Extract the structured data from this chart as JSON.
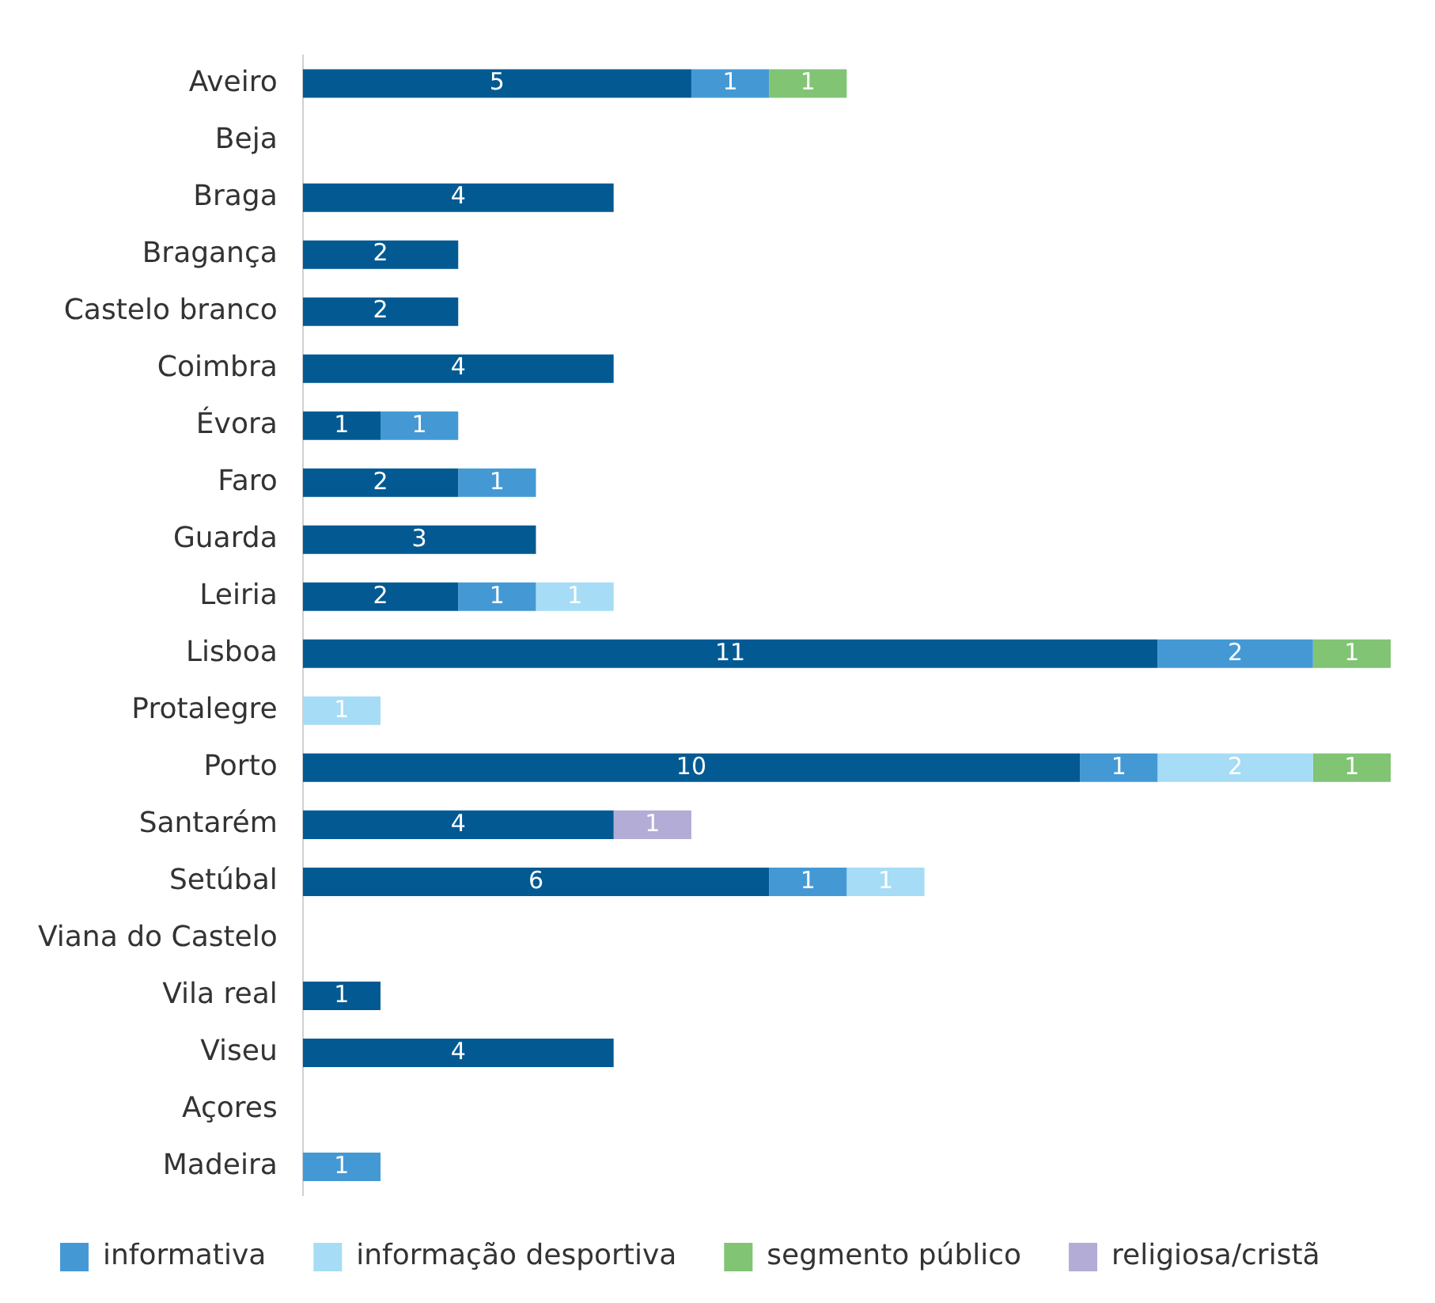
{
  "chart_data": {
    "type": "bar",
    "orientation": "horizontal",
    "stacked": true,
    "data_labels": true,
    "legend": "bottom",
    "categories": [
      "Aveiro",
      "Beja",
      "Braga",
      "Bragança",
      "Castelo branco",
      "Coimbra",
      "Évora",
      "Faro",
      "Guarda",
      "Leiria",
      "Lisboa",
      "Protalegre",
      "Porto",
      "Santarém",
      "Setúbal",
      "Viana do Castelo",
      "Vila real",
      "Viseu",
      "Açores",
      "Madeira"
    ],
    "series": [
      {
        "color": "#035a93",
        "values": [
          5,
          null,
          4,
          2,
          2,
          4,
          1,
          2,
          3,
          2,
          11,
          null,
          10,
          4,
          6,
          null,
          1,
          4,
          null,
          null
        ]
      },
      {
        "name": "informativa",
        "color": "#4499d5",
        "values": [
          1,
          null,
          null,
          null,
          null,
          null,
          1,
          1,
          null,
          1,
          2,
          null,
          1,
          null,
          1,
          null,
          null,
          null,
          null,
          1
        ]
      },
      {
        "name": "informação desportiva",
        "color": "#a6dcf5",
        "values": [
          null,
          null,
          null,
          null,
          null,
          null,
          null,
          null,
          null,
          1,
          null,
          1,
          2,
          null,
          1,
          null,
          null,
          null,
          null,
          null
        ]
      },
      {
        "name": "segmento público",
        "color": "#80c474",
        "values": [
          1,
          null,
          null,
          null,
          null,
          null,
          null,
          null,
          null,
          null,
          1,
          null,
          1,
          null,
          null,
          null,
          null,
          null,
          null,
          null
        ]
      },
      {
        "name": "religiosa/cristã",
        "color": "#b3acd6",
        "values": [
          null,
          null,
          null,
          null,
          null,
          null,
          null,
          null,
          null,
          null,
          null,
          null,
          null,
          1,
          null,
          null,
          null,
          null,
          null,
          null
        ]
      }
    ]
  }
}
